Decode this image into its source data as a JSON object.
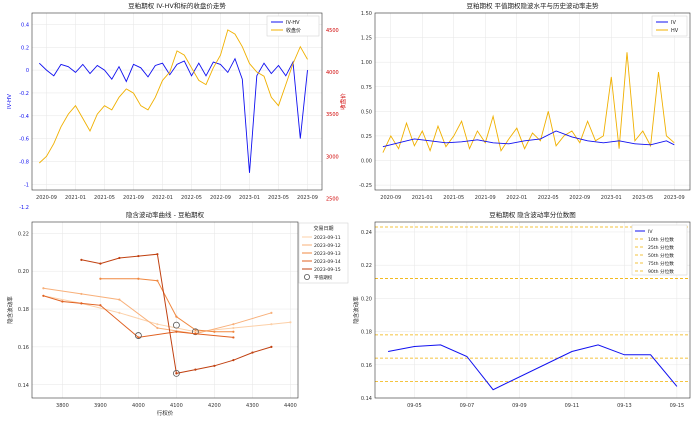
{
  "chart_data": [
    {
      "type": "line",
      "title": "豆粕期权 IV-HV和标的收盘价走势",
      "ylabel": "IV-HV",
      "y2label": "收盘价",
      "x_ticks": [
        "2020-09",
        "2021-01",
        "2021-05",
        "2021-09",
        "2022-01",
        "2022-05",
        "2022-09",
        "2023-01",
        "2023-05",
        "2023-09"
      ],
      "ylim": [
        -1.05,
        0.5
      ],
      "y_ticks": [
        "0.4",
        "0.2",
        "0",
        "-0.2",
        "-0.4",
        "-0.6",
        "-0.8",
        "-1",
        "-1.2"
      ],
      "y2lim": [
        2600,
        4700
      ],
      "y2_ticks": [
        "4500",
        "4000",
        "3500",
        "3000",
        "2500"
      ],
      "legend_position": "top-right",
      "series": [
        {
          "name": "IV-HV",
          "axis": "left",
          "color": "#1010f0",
          "x": [
            "2020-08",
            "2020-09",
            "2020-10",
            "2020-11",
            "2020-12",
            "2021-01",
            "2021-02",
            "2021-03",
            "2021-04",
            "2021-05",
            "2021-06",
            "2021-07",
            "2021-08",
            "2021-09",
            "2021-10",
            "2021-11",
            "2021-12",
            "2022-01",
            "2022-02",
            "2022-03",
            "2022-04",
            "2022-05",
            "2022-06",
            "2022-07",
            "2022-08",
            "2022-09",
            "2022-10",
            "2022-11",
            "2022-12",
            "2023-01",
            "2023-02",
            "2023-03",
            "2023-04",
            "2023-05",
            "2023-06",
            "2023-07",
            "2023-08",
            "2023-09"
          ],
          "values": [
            0.06,
            0.0,
            -0.05,
            0.05,
            0.03,
            -0.02,
            0.05,
            -0.03,
            0.04,
            0.0,
            -0.08,
            0.03,
            -0.1,
            0.05,
            0.02,
            -0.06,
            0.04,
            0.06,
            -0.04,
            0.05,
            0.08,
            -0.05,
            0.06,
            -0.05,
            0.07,
            0.05,
            -0.02,
            0.1,
            -0.08,
            -0.9,
            -0.05,
            0.06,
            -0.03,
            0.04,
            -0.05,
            0.07,
            -0.6,
            0.0
          ]
        },
        {
          "name": "收盘价",
          "axis": "right",
          "color": "#f0b000",
          "x": [
            "2020-08",
            "2020-09",
            "2020-10",
            "2020-11",
            "2020-12",
            "2021-01",
            "2021-02",
            "2021-03",
            "2021-04",
            "2021-05",
            "2021-06",
            "2021-07",
            "2021-08",
            "2021-09",
            "2021-10",
            "2021-11",
            "2021-12",
            "2022-01",
            "2022-02",
            "2022-03",
            "2022-04",
            "2022-05",
            "2022-06",
            "2022-07",
            "2022-08",
            "2022-09",
            "2022-10",
            "2022-11",
            "2022-12",
            "2023-01",
            "2023-02",
            "2023-03",
            "2023-04",
            "2023-05",
            "2023-06",
            "2023-07",
            "2023-08",
            "2023-09"
          ],
          "values": [
            2920,
            3000,
            3150,
            3350,
            3500,
            3600,
            3450,
            3300,
            3500,
            3600,
            3550,
            3700,
            3800,
            3750,
            3600,
            3550,
            3700,
            3900,
            4000,
            4250,
            4200,
            4050,
            3900,
            3850,
            4050,
            4200,
            4500,
            4450,
            4300,
            4100,
            4000,
            3950,
            3700,
            3600,
            3850,
            4100,
            4300,
            4150
          ]
        }
      ]
    },
    {
      "type": "line",
      "title": "豆粕期权 平值期权隐波水平与历史波动率走势",
      "x_ticks": [
        "2020-09",
        "2021-01",
        "2021-05",
        "2021-09",
        "2022-01",
        "2022-05",
        "2022-09",
        "2023-01",
        "2023-05",
        "2023-09"
      ],
      "ylim": [
        -0.3,
        1.5
      ],
      "y_ticks": [
        "1.50",
        "1.25",
        "1.00",
        "0.75",
        "0.50",
        "0.25",
        "0.00",
        "-0.25"
      ],
      "legend_position": "top-right",
      "series": [
        {
          "name": "IV",
          "color": "#1010f0",
          "x": [
            "2020-08",
            "2020-10",
            "2020-12",
            "2021-02",
            "2021-04",
            "2021-06",
            "2021-08",
            "2021-10",
            "2021-12",
            "2022-02",
            "2022-04",
            "2022-06",
            "2022-08",
            "2022-10",
            "2022-12",
            "2023-02",
            "2023-04",
            "2023-06",
            "2023-08",
            "2023-09"
          ],
          "values": [
            0.14,
            0.18,
            0.22,
            0.2,
            0.18,
            0.19,
            0.21,
            0.18,
            0.17,
            0.2,
            0.22,
            0.3,
            0.24,
            0.2,
            0.18,
            0.2,
            0.17,
            0.16,
            0.2,
            0.16
          ]
        },
        {
          "name": "HV",
          "color": "#f0b000",
          "x": [
            "2020-08",
            "2020-09",
            "2020-10",
            "2020-11",
            "2020-12",
            "2021-01",
            "2021-02",
            "2021-03",
            "2021-04",
            "2021-05",
            "2021-06",
            "2021-07",
            "2021-08",
            "2021-09",
            "2021-10",
            "2021-11",
            "2021-12",
            "2022-01",
            "2022-02",
            "2022-03",
            "2022-04",
            "2022-05",
            "2022-06",
            "2022-07",
            "2022-08",
            "2022-09",
            "2022-10",
            "2022-11",
            "2022-12",
            "2023-01",
            "2023-02",
            "2023-03",
            "2023-04",
            "2023-05",
            "2023-06",
            "2023-07",
            "2023-08",
            "2023-09"
          ],
          "values": [
            0.08,
            0.25,
            0.12,
            0.38,
            0.15,
            0.3,
            0.1,
            0.35,
            0.14,
            0.25,
            0.4,
            0.12,
            0.3,
            0.18,
            0.45,
            0.1,
            0.22,
            0.33,
            0.12,
            0.28,
            0.2,
            0.5,
            0.15,
            0.25,
            0.3,
            0.18,
            0.4,
            0.2,
            0.25,
            0.85,
            0.12,
            1.1,
            0.2,
            0.3,
            0.15,
            0.9,
            0.25,
            0.18
          ]
        }
      ]
    },
    {
      "type": "line",
      "title": "隐含波动率曲线 - 豆粕期权",
      "xlabel": "行权价",
      "ylabel": "隐含波动率",
      "x_ticks": [
        "3800",
        "3900",
        "4000",
        "4100",
        "4200",
        "4300",
        "4400"
      ],
      "xlim": [
        3720,
        4420
      ],
      "ylim": [
        0.133,
        0.226
      ],
      "y_ticks": [
        "0.22",
        "0.20",
        "0.18",
        "0.16",
        "0.14"
      ],
      "legend_title": "交易日期",
      "legend_position": "top-right",
      "atm_label": "平值期权",
      "series": [
        {
          "name": "2023-09-11",
          "color": "#fcd0a8",
          "x": [
            3750,
            3850,
            3950,
            4050,
            4150,
            4250,
            4350,
            4400
          ],
          "values": [
            0.187,
            0.183,
            0.178,
            0.172,
            0.168,
            0.17,
            0.172,
            0.173
          ],
          "atm": [
            4100,
            0.1715
          ]
        },
        {
          "name": "2023-09-12",
          "color": "#f8b07a",
          "x": [
            3750,
            3850,
            3950,
            4050,
            4150,
            4250,
            4350
          ],
          "values": [
            0.191,
            0.188,
            0.185,
            0.17,
            0.167,
            0.172,
            0.178
          ]
        },
        {
          "name": "2023-09-13",
          "color": "#f08840",
          "x": [
            3900,
            4000,
            4050,
            4100,
            4150,
            4200,
            4250
          ],
          "values": [
            0.196,
            0.196,
            0.195,
            0.176,
            0.169,
            0.168,
            0.168
          ],
          "atm": [
            4150,
            0.168
          ]
        },
        {
          "name": "2023-09-14",
          "color": "#e06020",
          "x": [
            3750,
            3800,
            3850,
            3900,
            4000,
            4100,
            4150,
            4250
          ],
          "values": [
            0.187,
            0.184,
            0.183,
            0.182,
            0.165,
            0.168,
            0.167,
            0.165
          ],
          "atm": [
            4000,
            0.166
          ]
        },
        {
          "name": "2023-09-15",
          "color": "#c04010",
          "x": [
            3850,
            3900,
            3950,
            4000,
            4050,
            4100,
            4150,
            4200,
            4250,
            4300,
            4350
          ],
          "values": [
            0.206,
            0.204,
            0.207,
            0.208,
            0.209,
            0.146,
            0.148,
            0.15,
            0.153,
            0.157,
            0.16
          ],
          "atm": [
            4100,
            0.146
          ]
        }
      ]
    },
    {
      "type": "line",
      "title": "豆粕期权 隐含波动率分位数图",
      "ylabel": "隐含波动率",
      "x_ticks": [
        "09-05",
        "09-07",
        "09-09",
        "09-11",
        "09-13",
        "09-15"
      ],
      "ylim": [
        0.14,
        0.246
      ],
      "y_ticks": [
        "0.24",
        "0.22",
        "0.20",
        "0.18",
        "0.16",
        "0.14"
      ],
      "legend_position": "top-right",
      "series": [
        {
          "name": "IV",
          "color": "#1010f0",
          "x": [
            "09-04",
            "09-05",
            "09-06",
            "09-07",
            "09-08",
            "09-11",
            "09-12",
            "09-13",
            "09-14",
            "09-15"
          ],
          "values": [
            0.168,
            0.171,
            0.172,
            0.165,
            0.145,
            0.168,
            0.172,
            0.166,
            0.166,
            0.147
          ]
        }
      ],
      "quantiles": [
        {
          "name": "10th 分位数",
          "value": 0.15
        },
        {
          "name": "25th 分位数",
          "value": 0.164
        },
        {
          "name": "50th 分位数",
          "value": 0.178
        },
        {
          "name": "75th 分位数",
          "value": 0.212
        },
        {
          "name": "90th 分位数",
          "value": 0.243
        }
      ]
    }
  ]
}
